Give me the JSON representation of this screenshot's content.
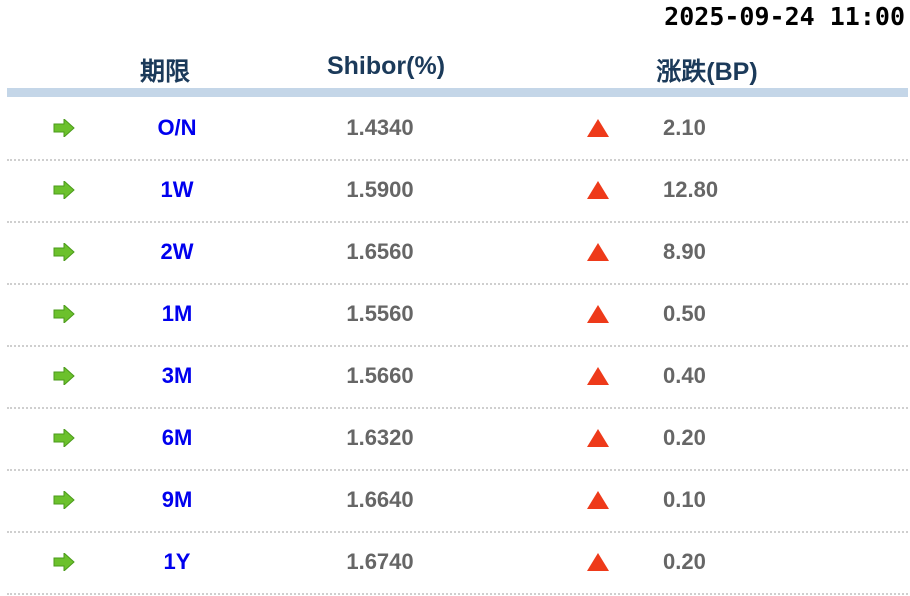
{
  "timestamp": "2025-09-24 11:00",
  "headers": {
    "term": "期限",
    "rate": "Shibor(%)",
    "change": "涨跌(BP)"
  },
  "colors": {
    "term_link": "#0000ee",
    "up": "#ee3a1a",
    "arrow": "#6cc12c"
  },
  "rows": [
    {
      "term": "O/N",
      "rate": "1.4340",
      "direction": "up",
      "change": "2.10"
    },
    {
      "term": "1W",
      "rate": "1.5900",
      "direction": "up",
      "change": "12.80"
    },
    {
      "term": "2W",
      "rate": "1.6560",
      "direction": "up",
      "change": "8.90"
    },
    {
      "term": "1M",
      "rate": "1.5560",
      "direction": "up",
      "change": "0.50"
    },
    {
      "term": "3M",
      "rate": "1.5660",
      "direction": "up",
      "change": "0.40"
    },
    {
      "term": "6M",
      "rate": "1.6320",
      "direction": "up",
      "change": "0.20"
    },
    {
      "term": "9M",
      "rate": "1.6640",
      "direction": "up",
      "change": "0.10"
    },
    {
      "term": "1Y",
      "rate": "1.6740",
      "direction": "up",
      "change": "0.20"
    }
  ]
}
